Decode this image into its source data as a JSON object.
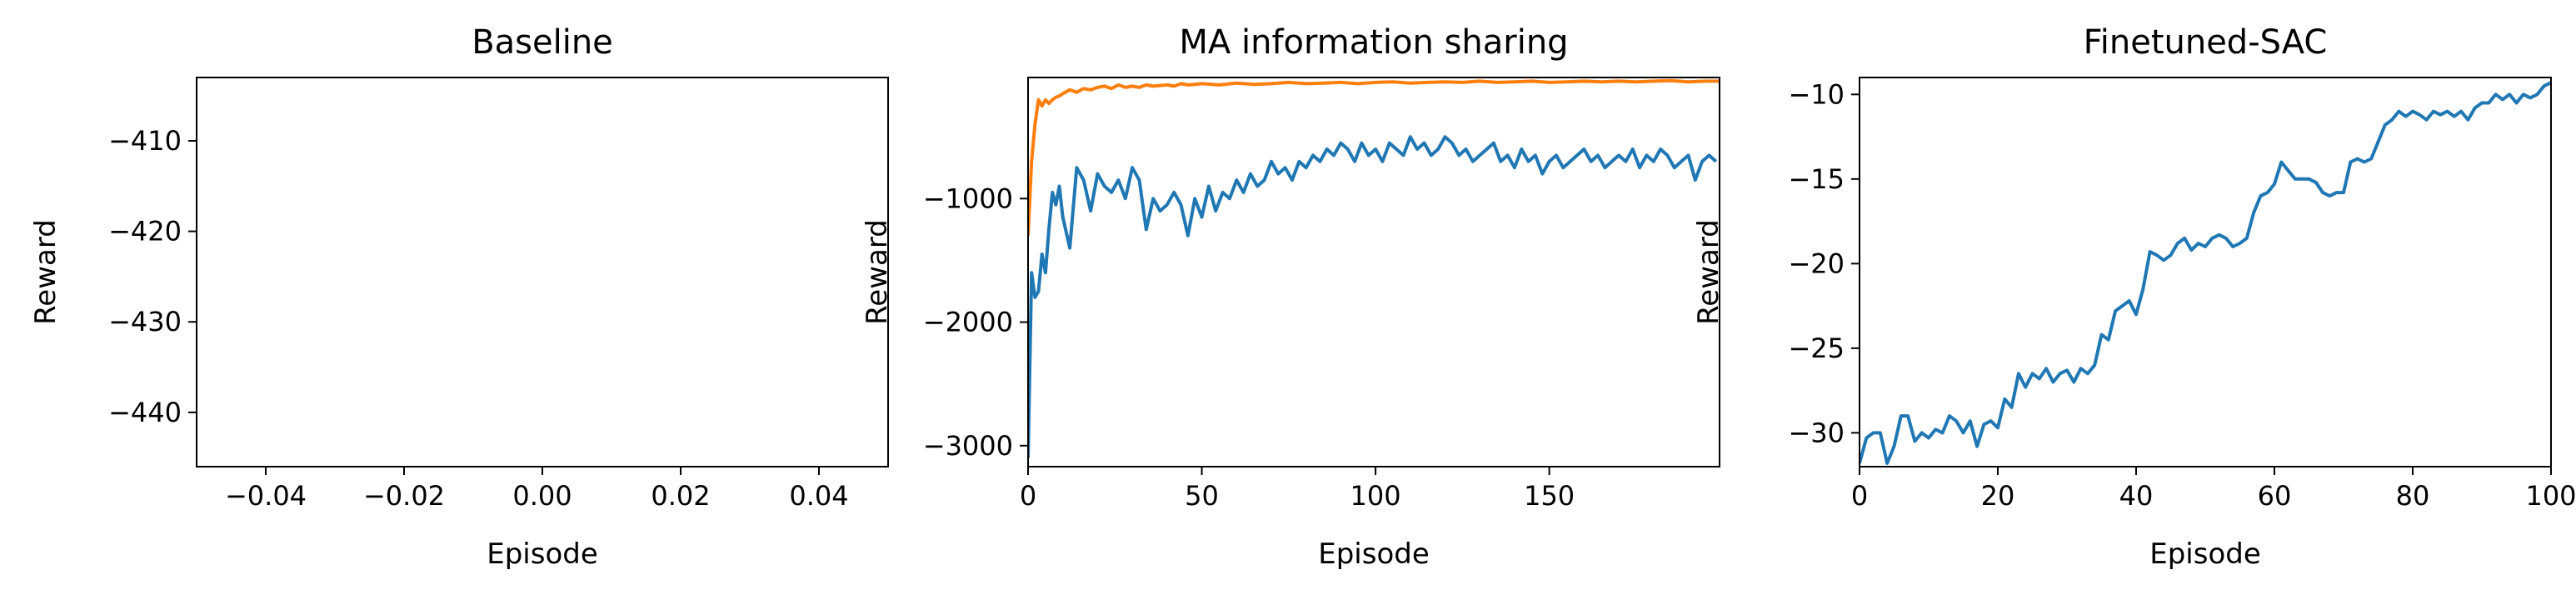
{
  "chart_data": [
    {
      "type": "line",
      "title": "Baseline",
      "xlabel": "Episode",
      "ylabel": "Reward",
      "xlim": [
        -0.05,
        0.05
      ],
      "ylim": [
        -446,
        -403
      ],
      "xticks": [
        -0.04,
        -0.02,
        0.0,
        0.02,
        0.04
      ],
      "xtick_labels": [
        "−0.04",
        "−0.02",
        "0.00",
        "0.02",
        "0.04"
      ],
      "yticks": [
        -440,
        -430,
        -420,
        -410
      ],
      "ytick_labels": [
        "−440",
        "−430",
        "−420",
        "−410"
      ],
      "grid": false,
      "series": []
    },
    {
      "type": "line",
      "title": "MA information sharing",
      "xlabel": "Episode",
      "ylabel": "Reward",
      "xlim": [
        0,
        199
      ],
      "ylim": [
        -3170,
        -20
      ],
      "xticks": [
        0,
        50,
        100,
        150
      ],
      "xtick_labels": [
        "0",
        "50",
        "100",
        "150"
      ],
      "yticks": [
        -3000,
        -2000,
        -1000
      ],
      "ytick_labels": [
        "−3000",
        "−2000",
        "−1000"
      ],
      "grid": false,
      "series": [
        {
          "color": "#1f77b4",
          "x": [
            0,
            1,
            2,
            3,
            4,
            5,
            6,
            7,
            8,
            9,
            10,
            12,
            14,
            16,
            18,
            20,
            22,
            24,
            26,
            28,
            30,
            32,
            34,
            36,
            38,
            40,
            42,
            44,
            46,
            48,
            50,
            52,
            54,
            56,
            58,
            60,
            62,
            64,
            66,
            68,
            70,
            72,
            74,
            76,
            78,
            80,
            82,
            84,
            86,
            88,
            90,
            92,
            94,
            96,
            98,
            100,
            102,
            104,
            106,
            108,
            110,
            112,
            114,
            116,
            118,
            120,
            122,
            124,
            126,
            128,
            130,
            132,
            134,
            136,
            138,
            140,
            142,
            144,
            146,
            148,
            150,
            152,
            154,
            156,
            158,
            160,
            162,
            164,
            166,
            168,
            170,
            172,
            174,
            176,
            178,
            180,
            182,
            184,
            186,
            188,
            190,
            192,
            194,
            196,
            198
          ],
          "y": [
            -3100,
            -1600,
            -1800,
            -1750,
            -1450,
            -1600,
            -1250,
            -950,
            -1050,
            -900,
            -1150,
            -1400,
            -750,
            -850,
            -1100,
            -800,
            -900,
            -950,
            -850,
            -1000,
            -750,
            -850,
            -1250,
            -1000,
            -1100,
            -1050,
            -950,
            -1050,
            -1300,
            -1000,
            -1150,
            -900,
            -1100,
            -950,
            -1000,
            -850,
            -950,
            -800,
            -900,
            -850,
            -700,
            -800,
            -750,
            -850,
            -700,
            -750,
            -650,
            -700,
            -600,
            -650,
            -550,
            -600,
            -700,
            -550,
            -650,
            -600,
            -700,
            -550,
            -600,
            -650,
            -500,
            -600,
            -550,
            -650,
            -600,
            -500,
            -550,
            -650,
            -600,
            -700,
            -650,
            -600,
            -550,
            -700,
            -650,
            -750,
            -600,
            -700,
            -650,
            -800,
            -700,
            -650,
            -750,
            -700,
            -650,
            -600,
            -700,
            -650,
            -750,
            -700,
            -650,
            -700,
            -600,
            -750,
            -650,
            -700,
            -600,
            -650,
            -750,
            -700,
            -650,
            -850,
            -700,
            -650,
            -700
          ]
        },
        {
          "color": "#ff7f0e",
          "x": [
            0,
            1,
            2,
            3,
            4,
            5,
            6,
            7,
            8,
            9,
            10,
            12,
            14,
            16,
            18,
            20,
            22,
            24,
            26,
            28,
            30,
            32,
            34,
            36,
            38,
            40,
            42,
            44,
            46,
            48,
            50,
            55,
            60,
            65,
            70,
            75,
            80,
            85,
            90,
            95,
            100,
            105,
            110,
            115,
            120,
            125,
            130,
            135,
            140,
            145,
            150,
            155,
            160,
            165,
            170,
            175,
            180,
            185,
            190,
            195,
            199
          ],
          "y": [
            -1300,
            -700,
            -400,
            -200,
            -250,
            -200,
            -230,
            -200,
            -180,
            -170,
            -150,
            -120,
            -140,
            -110,
            -120,
            -100,
            -90,
            -110,
            -80,
            -100,
            -90,
            -100,
            -80,
            -90,
            -85,
            -80,
            -90,
            -70,
            -80,
            -75,
            -70,
            -80,
            -65,
            -75,
            -70,
            -60,
            -70,
            -65,
            -60,
            -70,
            -60,
            -55,
            -65,
            -60,
            -55,
            -60,
            -50,
            -60,
            -55,
            -50,
            -60,
            -55,
            -50,
            -55,
            -50,
            -55,
            -50,
            -45,
            -55,
            -50,
            -50
          ]
        }
      ]
    },
    {
      "type": "line",
      "title": "Finetuned-SAC",
      "xlabel": "Episode",
      "ylabel": "Reward",
      "xlim": [
        0,
        100
      ],
      "ylim": [
        -32,
        -9
      ],
      "xticks": [
        0,
        20,
        40,
        60,
        80,
        100
      ],
      "xtick_labels": [
        "0",
        "20",
        "40",
        "60",
        "80",
        "100"
      ],
      "yticks": [
        -30,
        -25,
        -20,
        -15,
        -10
      ],
      "ytick_labels": [
        "−30",
        "−25",
        "−20",
        "−15",
        "−10"
      ],
      "grid": false,
      "series": [
        {
          "color": "#1f77b4",
          "x": [
            0,
            1,
            2,
            3,
            4,
            5,
            6,
            7,
            8,
            9,
            10,
            11,
            12,
            13,
            14,
            15,
            16,
            17,
            18,
            19,
            20,
            21,
            22,
            23,
            24,
            25,
            26,
            27,
            28,
            29,
            30,
            31,
            32,
            33,
            34,
            35,
            36,
            37,
            38,
            39,
            40,
            41,
            42,
            43,
            44,
            45,
            46,
            47,
            48,
            49,
            50,
            51,
            52,
            53,
            54,
            55,
            56,
            57,
            58,
            59,
            60,
            61,
            62,
            63,
            64,
            65,
            66,
            67,
            68,
            69,
            70,
            71,
            72,
            73,
            74,
            75,
            76,
            77,
            78,
            79,
            80,
            81,
            82,
            83,
            84,
            85,
            86,
            87,
            88,
            89,
            90,
            91,
            92,
            93,
            94,
            95,
            96,
            97,
            98,
            99,
            100
          ],
          "y": [
            -31.8,
            -30.3,
            -30.0,
            -30.0,
            -31.8,
            -30.8,
            -29.0,
            -29.0,
            -30.5,
            -30.0,
            -30.3,
            -29.8,
            -30.0,
            -29.0,
            -29.3,
            -30.0,
            -29.3,
            -30.8,
            -29.5,
            -29.3,
            -29.7,
            -28.0,
            -28.5,
            -26.5,
            -27.3,
            -26.5,
            -26.8,
            -26.2,
            -27.0,
            -26.5,
            -26.3,
            -27.0,
            -26.2,
            -26.5,
            -26.0,
            -24.2,
            -24.5,
            -22.8,
            -22.5,
            -22.2,
            -23.0,
            -21.5,
            -19.3,
            -19.5,
            -19.8,
            -19.5,
            -18.8,
            -18.5,
            -19.2,
            -18.8,
            -19.0,
            -18.5,
            -18.3,
            -18.5,
            -19.0,
            -18.8,
            -18.5,
            -17.0,
            -16.0,
            -15.8,
            -15.3,
            -14.0,
            -14.5,
            -15.0,
            -15.0,
            -15.0,
            -15.2,
            -15.8,
            -16.0,
            -15.8,
            -15.8,
            -14.0,
            -13.8,
            -14.0,
            -13.8,
            -12.8,
            -11.8,
            -11.5,
            -11.0,
            -11.3,
            -11.0,
            -11.2,
            -11.5,
            -11.0,
            -11.2,
            -11.0,
            -11.3,
            -11.0,
            -11.5,
            -10.8,
            -10.5,
            -10.5,
            -10.0,
            -10.3,
            -10.0,
            -10.5,
            -10.0,
            -10.2,
            -10.0,
            -9.5,
            -9.3
          ]
        }
      ]
    }
  ]
}
